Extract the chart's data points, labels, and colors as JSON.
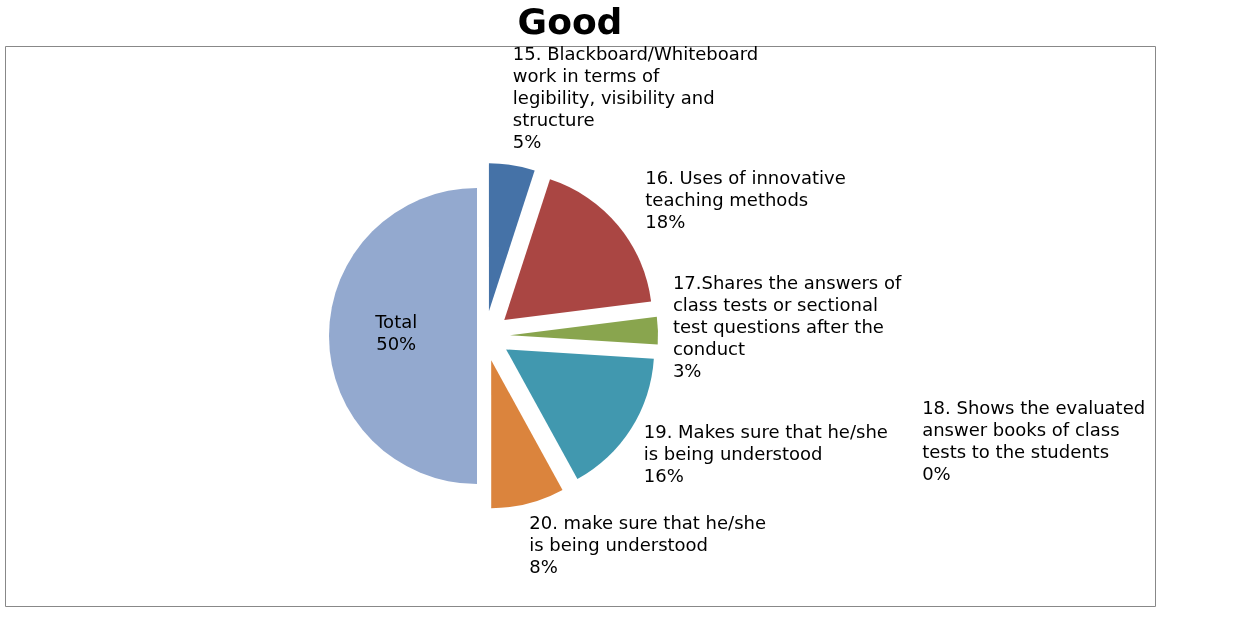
{
  "chart_data": {
    "type": "pie",
    "title": "Good",
    "categories": [
      "15. Blackboard/Whiteboard work in terms of legibility, visibility and structure",
      "16. Uses of innovative teaching methods",
      "17.Shares the answers of class tests or sectional test questions after the conduct",
      "18. Shows the evaluated answer books of class tests to the students",
      "19. Makes sure that he/she is being understood",
      "20. make sure that he/she is being understood",
      "Total"
    ],
    "values": [
      5,
      18,
      3,
      0,
      16,
      8,
      50
    ],
    "colors": [
      "#4572a7",
      "#aa4643",
      "#89a54e",
      "#71588f",
      "#4198af",
      "#db843d",
      "#93a9cf"
    ],
    "value_labels": [
      "5%",
      "18%",
      "3%",
      "0%",
      "16%",
      "8%",
      "50%"
    ]
  }
}
